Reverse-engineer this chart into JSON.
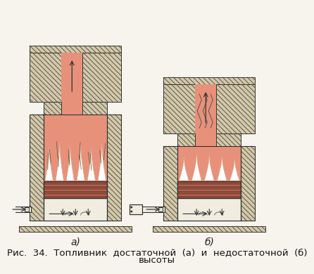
{
  "bg_color": "#f7f4ee",
  "hatch_color": "#444444",
  "wall_fill": "#d4c8a8",
  "firebox_fill": "#e8917a",
  "grate_dark": "#b05540",
  "grate_light": "#d07860",
  "air_fill": "#f0ede0",
  "flame_white": "#ffffff",
  "pipe_fill": "#f0ede0",
  "label_a": "а)",
  "label_b": "б)",
  "caption_line1": "Рис.  34.  Топливник  достаточной  (а)  и  недостаточной  (б)",
  "caption_line2": "высоты",
  "caption_fontsize": 9.5,
  "label_fontsize": 10
}
